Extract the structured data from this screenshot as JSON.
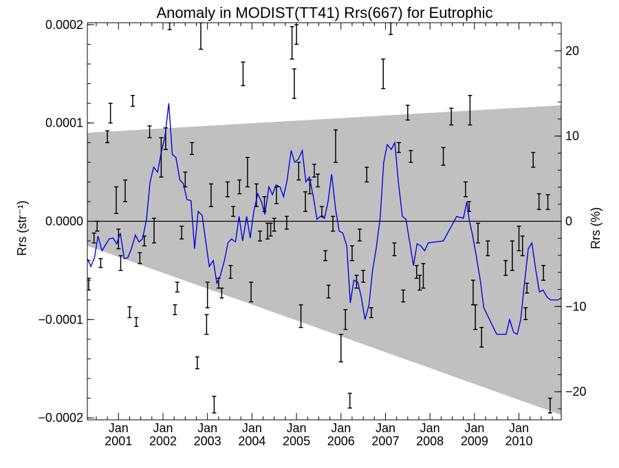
{
  "chart_data": {
    "type": "line",
    "title": "Anomaly in MODIST(TT41) Rrs(667) for Eutrophic",
    "ylabel_left": "Rrs (str⁻¹)",
    "ylabel_right": "Rrs (%)",
    "xlabel": "",
    "xlim": [
      2000.3,
      2010.95
    ],
    "ylim_left": [
      -0.000202,
      0.000202
    ],
    "ylim_right": [
      -23.3,
      23.3
    ],
    "grid": false,
    "left_ticks": [
      {
        "value": 0.0002,
        "label": "0.0002"
      },
      {
        "value": 0.0001,
        "label": "0.0001"
      },
      {
        "value": 0.0,
        "label": "0.0000"
      },
      {
        "value": -0.0001,
        "label": "−0.0001"
      },
      {
        "value": -0.0002,
        "label": "−0.0002"
      }
    ],
    "right_ticks": [
      {
        "value": 20,
        "label": "20"
      },
      {
        "value": 10,
        "label": "10"
      },
      {
        "value": 0,
        "label": "0"
      },
      {
        "value": -10,
        "label": "−10"
      },
      {
        "value": -20,
        "label": "−20"
      }
    ],
    "x_ticks": [
      {
        "value": 2001.0,
        "month": "Jan",
        "year": "2001"
      },
      {
        "value": 2002.0,
        "month": "Jan",
        "year": "2002"
      },
      {
        "value": 2003.0,
        "month": "Jan",
        "year": "2003"
      },
      {
        "value": 2004.0,
        "month": "Jan",
        "year": "2004"
      },
      {
        "value": 2005.0,
        "month": "Jan",
        "year": "2005"
      },
      {
        "value": 2006.0,
        "month": "Jan",
        "year": "2006"
      },
      {
        "value": 2007.0,
        "month": "Jan",
        "year": "2007"
      },
      {
        "value": 2008.0,
        "month": "Jan",
        "year": "2008"
      },
      {
        "value": 2009.0,
        "month": "Jan",
        "year": "2009"
      },
      {
        "value": 2010.0,
        "month": "Jan",
        "year": "2010"
      }
    ],
    "band": {
      "color": "#c0c0c0",
      "x": [
        2000.3,
        2010.95
      ],
      "upper": [
        9e-05,
        0.000118
      ],
      "lower": [
        -2.5e-05,
        -0.000197
      ]
    },
    "zero_line": 0,
    "line_series": {
      "color": "#0000dd",
      "x": [
        2000.3,
        2000.38,
        2000.46,
        2000.54,
        2000.63,
        2000.71,
        2000.79,
        2000.88,
        2000.96,
        2001.04,
        2001.13,
        2001.21,
        2001.29,
        2001.38,
        2001.46,
        2001.54,
        2001.63,
        2001.71,
        2001.79,
        2001.88,
        2001.96,
        2002.04,
        2002.13,
        2002.21,
        2002.29,
        2002.38,
        2002.46,
        2002.54,
        2002.63,
        2002.71,
        2002.79,
        2002.88,
        2002.96,
        2003.04,
        2003.13,
        2003.21,
        2003.29,
        2003.38,
        2003.46,
        2003.54,
        2003.63,
        2003.71,
        2003.79,
        2003.88,
        2003.96,
        2004.04,
        2004.13,
        2004.21,
        2004.29,
        2004.38,
        2004.46,
        2004.54,
        2004.63,
        2004.71,
        2004.79,
        2004.88,
        2004.96,
        2005.04,
        2005.13,
        2005.21,
        2005.29,
        2005.38,
        2005.46,
        2005.54,
        2005.63,
        2005.71,
        2005.79,
        2005.88,
        2005.96,
        2006.04,
        2006.13,
        2006.21,
        2006.29,
        2006.38,
        2006.46,
        2006.54,
        2006.63,
        2006.71,
        2006.79,
        2006.88,
        2006.96,
        2007.04,
        2007.13,
        2007.21,
        2007.29,
        2007.38,
        2007.46,
        2007.54,
        2007.63,
        2007.71,
        2007.79,
        2007.88,
        2007.96,
        2008.3,
        2008.6,
        2008.75,
        2008.83,
        2008.88,
        2008.96,
        2009.04,
        2009.13,
        2009.21,
        2009.5,
        2009.63,
        2009.71,
        2009.79,
        2009.88,
        2009.96,
        2010.04,
        2010.13,
        2010.21,
        2010.29,
        2010.38,
        2010.46,
        2010.54,
        2010.63,
        2010.71,
        2010.79,
        2010.88,
        2010.95
      ],
      "y": [
        -3.8e-05,
        -4.6e-05,
        -3.7e-05,
        -1.5e-05,
        -3e-05,
        -2.4e-05,
        -1.8e-05,
        -1.7e-05,
        -2.3e-05,
        -1.2e-05,
        -3.8e-05,
        -3.7e-05,
        -2.8e-05,
        -1.4e-05,
        -2.1e-05,
        -1.8e-05,
        2e-06,
        4e-05,
        5.5e-05,
        5e-05,
        7e-05,
        8.5e-05,
        0.00012,
        6.8e-05,
        6.5e-05,
        4.2e-05,
        3.8e-05,
        2.2e-05,
        2.1e-05,
        -2.8e-05,
        1e-05,
        6e-06,
        -2e-05,
        -4.6e-05,
        -4e-05,
        -6.3e-05,
        -5.5e-05,
        -4e-05,
        -2.2e-05,
        -1.8e-05,
        -2.1e-05,
        5e-06,
        -2e-05,
        5e-06,
        -1.7e-05,
        1e-05,
        2.8e-05,
        2e-05,
        7e-06,
        3.5e-05,
        2.7e-05,
        3.7e-05,
        3.5e-05,
        2.5e-05,
        4.2e-05,
        7.2e-05,
        6e-05,
        6.3e-05,
        7.2e-05,
        4e-05,
        4.5e-05,
        2.5e-05,
        2e-06,
        5e-06,
        3e-06,
        2e-05,
        4.8e-05,
        1.2e-05,
        -1e-05,
        -1.2e-05,
        -2.5e-05,
        -8.3e-05,
        -6e-05,
        -6.2e-05,
        -7.8e-05,
        -0.0001,
        -8.5e-05,
        -5e-05,
        -2.8e-05,
        3e-06,
        6e-05,
        7.8e-05,
        7.3e-05,
        8e-05,
        4e-05,
        5e-06,
        2e-06,
        -2e-05,
        -4.5e-05,
        -2.3e-05,
        -2.5e-05,
        -3e-05,
        -2.2e-05,
        -2e-05,
        5e-06,
        3e-06,
        2e-05,
        2e-06,
        -1.5e-05,
        -3.5e-05,
        -6e-05,
        -8.8e-05,
        -0.000115,
        -0.000115,
        -0.000115,
        -0.0001,
        -0.000113,
        -0.000115,
        -0.0001,
        -6e-05,
        -2.8e-05,
        -2.2e-05,
        -5e-05,
        -7.2e-05,
        -7e-05,
        -7.7e-05,
        -8e-05,
        -8e-05,
        -8e-05,
        -7.8e-05
      ],
      "name": ""
    },
    "error_bars": [
      {
        "x": 2000.33,
        "lo": -7e-05,
        "hi": -5.8e-05
      },
      {
        "x": 2000.45,
        "lo": -2.2e-05,
        "hi": -1.2e-05
      },
      {
        "x": 2000.52,
        "lo": -1e-05,
        "hi": 0.0
      },
      {
        "x": 2000.6,
        "lo": -4.7e-05,
        "hi": -3.8e-05
      },
      {
        "x": 2000.75,
        "lo": 8e-05,
        "hi": 9.2e-05
      },
      {
        "x": 2000.82,
        "lo": 0.0001,
        "hi": 0.00012
      },
      {
        "x": 2000.95,
        "lo": 8e-06,
        "hi": 3.5e-05
      },
      {
        "x": 2001.0,
        "lo": -2.8e-05,
        "hi": -8e-06
      },
      {
        "x": 2001.05,
        "lo": -5e-05,
        "hi": -3.5e-05
      },
      {
        "x": 2001.15,
        "lo": 2e-05,
        "hi": 4.2e-05
      },
      {
        "x": 2001.25,
        "lo": -9.8e-05,
        "hi": -8.7e-05
      },
      {
        "x": 2001.32,
        "lo": 0.000117,
        "hi": 0.000128
      },
      {
        "x": 2001.4,
        "lo": -0.000107,
        "hi": -9.8e-05
      },
      {
        "x": 2001.48,
        "lo": -4.3e-05,
        "hi": -3.2e-05
      },
      {
        "x": 2001.58,
        "lo": -2.5e-05,
        "hi": -1.5e-05
      },
      {
        "x": 2001.7,
        "lo": 8.5e-05,
        "hi": 9.7e-05
      },
      {
        "x": 2001.8,
        "lo": -2.2e-05,
        "hi": 3e-06
      },
      {
        "x": 2001.96,
        "lo": 4.5e-05,
        "hi": 8.5e-05
      },
      {
        "x": 2002.06,
        "lo": 7.3e-05,
        "hi": 9.5e-05
      },
      {
        "x": 2002.15,
        "lo": 0.000195,
        "hi": 0.000202
      },
      {
        "x": 2002.27,
        "lo": -9.5e-05,
        "hi": -8.5e-05
      },
      {
        "x": 2002.32,
        "lo": -7.2e-05,
        "hi": -6.2e-05
      },
      {
        "x": 2002.42,
        "lo": -1.8e-05,
        "hi": -5e-06
      },
      {
        "x": 2002.5,
        "lo": 3.5e-05,
        "hi": 5e-05
      },
      {
        "x": 2002.65,
        "lo": 6.8e-05,
        "hi": 8e-05
      },
      {
        "x": 2002.77,
        "lo": -0.00015,
        "hi": -0.000138
      },
      {
        "x": 2002.85,
        "lo": 0.000175,
        "hi": 0.000202
      },
      {
        "x": 2002.98,
        "lo": -0.000115,
        "hi": -9.5e-05
      },
      {
        "x": 2003.0,
        "lo": -8.8e-05,
        "hi": -6.2e-05
      },
      {
        "x": 2003.08,
        "lo": 1.5e-05,
        "hi": 3.8e-05
      },
      {
        "x": 2003.15,
        "lo": -0.000195,
        "hi": -0.000178
      },
      {
        "x": 2003.25,
        "lo": -6.8e-05,
        "hi": -5.8e-05
      },
      {
        "x": 2003.32,
        "lo": -7.8e-05,
        "hi": -6.8e-05
      },
      {
        "x": 2003.45,
        "lo": 2.5e-05,
        "hi": 4e-05
      },
      {
        "x": 2003.52,
        "lo": -5.8e-05,
        "hi": -4.5e-05
      },
      {
        "x": 2003.58,
        "lo": 5e-06,
        "hi": 1.5e-05
      },
      {
        "x": 2003.72,
        "lo": 2.8e-05,
        "hi": 4.2e-05
      },
      {
        "x": 2003.8,
        "lo": 0.000138,
        "hi": 0.000162
      },
      {
        "x": 2003.9,
        "lo": 3.5e-05,
        "hi": 6.5e-05
      },
      {
        "x": 2003.98,
        "lo": -8.2e-05,
        "hi": -6.2e-05
      },
      {
        "x": 2004.1,
        "lo": 1.5e-05,
        "hi": 3.8e-05
      },
      {
        "x": 2004.18,
        "lo": -2e-05,
        "hi": -1e-05
      },
      {
        "x": 2004.28,
        "lo": 1e-05,
        "hi": 2.5e-05
      },
      {
        "x": 2004.35,
        "lo": -1.8e-05,
        "hi": -2e-06
      },
      {
        "x": 2004.42,
        "lo": -1.5e-05,
        "hi": -2e-06
      },
      {
        "x": 2004.5,
        "lo": -1e-05,
        "hi": 3e-06
      },
      {
        "x": 2004.55,
        "lo": 1.8e-05,
        "hi": 3.5e-05
      },
      {
        "x": 2004.78,
        "lo": -8e-06,
        "hi": 5e-06
      },
      {
        "x": 2004.9,
        "lo": 0.000165,
        "hi": 0.000198
      },
      {
        "x": 2004.95,
        "lo": 0.000125,
        "hi": 0.000155
      },
      {
        "x": 2005.0,
        "lo": 0.00018,
        "hi": 0.0002
      },
      {
        "x": 2005.05,
        "lo": 4.2e-05,
        "hi": 6e-05
      },
      {
        "x": 2005.1,
        "lo": -0.000108,
        "hi": -8.5e-05
      },
      {
        "x": 2005.2,
        "lo": 1e-05,
        "hi": 3e-05
      },
      {
        "x": 2005.3,
        "lo": 2.8e-05,
        "hi": 4.2e-05
      },
      {
        "x": 2005.4,
        "lo": 4.5e-05,
        "hi": 5.8e-05
      },
      {
        "x": 2005.48,
        "lo": 3.5e-05,
        "hi": 4.8e-05
      },
      {
        "x": 2005.57,
        "lo": 5e-06,
        "hi": 1.5e-05
      },
      {
        "x": 2005.65,
        "lo": -4e-05,
        "hi": -3e-05
      },
      {
        "x": 2005.72,
        "lo": -7.8e-05,
        "hi": -6.5e-05
      },
      {
        "x": 2005.82,
        "lo": -1e-05,
        "hi": 5e-06
      },
      {
        "x": 2005.88,
        "lo": 6e-05,
        "hi": 9.3e-05
      },
      {
        "x": 2006.0,
        "lo": -0.000143,
        "hi": -0.000115
      },
      {
        "x": 2006.1,
        "lo": -0.00011,
        "hi": -9e-05
      },
      {
        "x": 2006.2,
        "lo": -0.00019,
        "hi": -0.000175
      },
      {
        "x": 2006.25,
        "lo": -4e-05,
        "hi": -2.5e-05
      },
      {
        "x": 2006.35,
        "lo": -6.8e-05,
        "hi": -5.5e-05
      },
      {
        "x": 2006.42,
        "lo": -2e-05,
        "hi": -8e-06
      },
      {
        "x": 2006.5,
        "lo": -6.2e-05,
        "hi": -5e-05
      },
      {
        "x": 2006.58,
        "lo": 4e-05,
        "hi": 5.5e-05
      },
      {
        "x": 2006.68,
        "lo": -9.8e-05,
        "hi": -8.8e-05
      },
      {
        "x": 2006.95,
        "lo": 0.000135,
        "hi": 0.000165
      },
      {
        "x": 2007.12,
        "lo": 0.00019,
        "hi": 0.000202
      },
      {
        "x": 2007.2,
        "lo": -3.5e-05,
        "hi": -2.2e-05
      },
      {
        "x": 2007.3,
        "lo": 7e-05,
        "hi": 8e-05
      },
      {
        "x": 2007.4,
        "lo": -8.2e-05,
        "hi": -7e-05
      },
      {
        "x": 2007.5,
        "lo": 0.000103,
        "hi": 0.000118
      },
      {
        "x": 2007.57,
        "lo": 6e-05,
        "hi": 7.2e-05
      },
      {
        "x": 2007.7,
        "lo": -5.8e-05,
        "hi": -4.5e-05
      },
      {
        "x": 2007.77,
        "lo": -7e-05,
        "hi": -5.5e-05
      },
      {
        "x": 2007.85,
        "lo": -6.8e-05,
        "hi": -4.3e-05
      },
      {
        "x": 2008.3,
        "lo": 5.7e-05,
        "hi": 7.5e-05
      },
      {
        "x": 2008.48,
        "lo": 9.8e-05,
        "hi": 0.000115
      },
      {
        "x": 2008.8,
        "lo": 2.5e-05,
        "hi": 4e-05
      },
      {
        "x": 2008.88,
        "lo": 1e-05,
        "hi": 2e-05
      },
      {
        "x": 2008.9,
        "lo": 9.8e-05,
        "hi": 0.000128
      },
      {
        "x": 2008.97,
        "lo": -8.5e-05,
        "hi": -6e-05
      },
      {
        "x": 2009.02,
        "lo": -0.00011,
        "hi": -8.5e-05
      },
      {
        "x": 2009.08,
        "lo": -2.2e-05,
        "hi": -2e-06
      },
      {
        "x": 2009.16,
        "lo": -0.000128,
        "hi": -0.000108
      },
      {
        "x": 2009.3,
        "lo": -3.5e-05,
        "hi": -2e-05
      },
      {
        "x": 2009.7,
        "lo": -5.5e-05,
        "hi": -4e-05
      },
      {
        "x": 2009.85,
        "lo": -5e-05,
        "hi": -2e-05
      },
      {
        "x": 2010.0,
        "lo": -3e-05,
        "hi": -5e-06
      },
      {
        "x": 2010.08,
        "lo": -3.5e-05,
        "hi": -1.5e-05
      },
      {
        "x": 2010.15,
        "lo": -0.0001,
        "hi": -8.8e-05
      },
      {
        "x": 2010.18,
        "lo": -7.3e-05,
        "hi": -6.3e-05
      },
      {
        "x": 2010.32,
        "lo": 5.5e-05,
        "hi": 7e-05
      },
      {
        "x": 2010.45,
        "lo": 1.2e-05,
        "hi": 2.8e-05
      },
      {
        "x": 2010.55,
        "lo": -6e-05,
        "hi": -4.5e-05
      },
      {
        "x": 2010.65,
        "lo": 1.2e-05,
        "hi": 2.7e-05
      },
      {
        "x": 2010.7,
        "lo": -0.000195,
        "hi": -0.00018
      }
    ]
  }
}
